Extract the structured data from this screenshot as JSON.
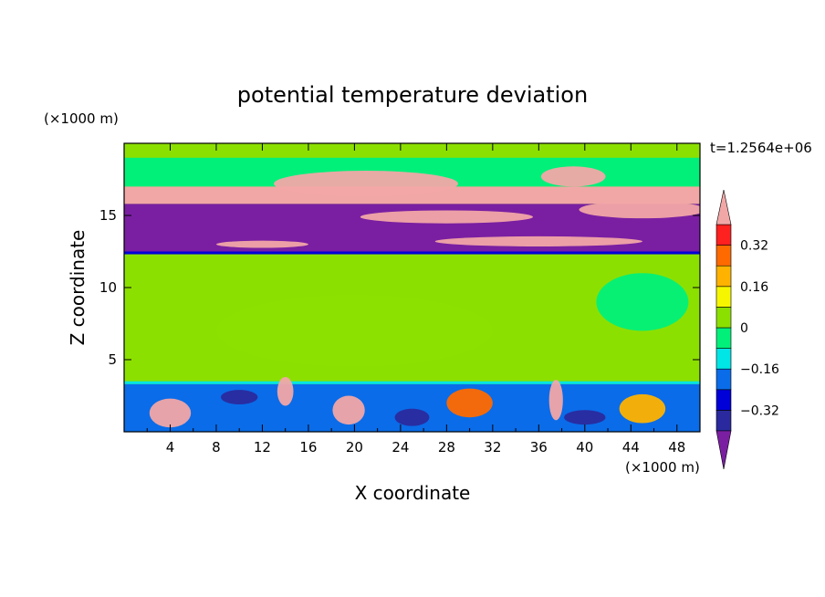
{
  "chart_data": {
    "type": "heatmap",
    "title": "potential temperature deviation",
    "xlabel": "X coordinate",
    "ylabel": "Z coordinate",
    "x_unit": "(×1000 m)",
    "y_unit": "(×1000 m)",
    "time_label": "t=1.2564e+06",
    "xlim": [
      0,
      50
    ],
    "ylim": [
      0,
      20
    ],
    "x_ticks": [
      4,
      8,
      12,
      16,
      20,
      24,
      28,
      32,
      36,
      40,
      44,
      48
    ],
    "y_ticks": [
      5,
      10,
      15
    ],
    "x_tick_labels": [
      "4",
      "8",
      "12",
      "16",
      "20",
      "24",
      "28",
      "32",
      "36",
      "40",
      "44",
      "48"
    ],
    "y_tick_labels": [
      "5",
      "10",
      "15"
    ],
    "colorbar": {
      "levels": [
        -0.4,
        -0.32,
        -0.24,
        -0.16,
        -0.08,
        0,
        0.08,
        0.16,
        0.24,
        0.32,
        0.4
      ],
      "tick_values": [
        0.32,
        0.16,
        0,
        -0.16,
        -0.32
      ],
      "tick_labels": [
        "0.32",
        "0.16",
        "0",
        "−0.16",
        "−0.32"
      ],
      "colors_low_to_high": [
        "#7a1fa2",
        "#2a2a9e",
        "#0000d8",
        "#0a6ce8",
        "#00e5e5",
        "#00f07a",
        "#8ce000",
        "#f6f600",
        "#ffb300",
        "#ff6a00",
        "#ff2020",
        "#f2a7a7"
      ]
    },
    "bands": [
      {
        "z": [
          19.0,
          19.6
        ],
        "value": 0.0
      },
      {
        "z": [
          17.0,
          19.0
        ],
        "value": -0.05
      },
      {
        "z": [
          15.8,
          17.0
        ],
        "value": 0.45
      },
      {
        "z": [
          12.5,
          15.8
        ],
        "value": -0.42
      },
      {
        "z": [
          12.3,
          12.5
        ],
        "value": -0.3
      },
      {
        "z": [
          3.5,
          12.3
        ],
        "value": 0.02
      },
      {
        "z": [
          3.3,
          3.5
        ],
        "value": -0.12
      },
      {
        "z": [
          0,
          3.3
        ],
        "value": -0.2
      }
    ],
    "features": [
      {
        "x": 21,
        "z": 17.2,
        "rx": 8,
        "rz": 0.9,
        "value": 0.45
      },
      {
        "x": 39,
        "z": 17.7,
        "rx": 2.8,
        "rz": 0.7,
        "value": 0.45
      },
      {
        "x": 45,
        "z": 15.4,
        "rx": 5.5,
        "rz": 0.6,
        "value": 0.45
      },
      {
        "x": 28,
        "z": 14.9,
        "rx": 7.5,
        "rz": 0.45,
        "value": 0.45
      },
      {
        "x": 36,
        "z": 13.2,
        "rx": 9,
        "rz": 0.35,
        "value": 0.45
      },
      {
        "x": 12,
        "z": 13.0,
        "rx": 4,
        "rz": 0.25,
        "value": 0.45
      },
      {
        "x": 4,
        "z": 1.3,
        "rx": 1.8,
        "rz": 1.0,
        "value": 0.4
      },
      {
        "x": 19.5,
        "z": 1.5,
        "rx": 1.4,
        "rz": 1.0,
        "value": 0.4
      },
      {
        "x": 14,
        "z": 2.8,
        "rx": 0.7,
        "rz": 1.0,
        "value": 0.45
      },
      {
        "x": 37.5,
        "z": 2.2,
        "rx": 0.6,
        "rz": 1.4,
        "value": 0.45
      },
      {
        "x": 30,
        "z": 2.0,
        "rx": 2.0,
        "rz": 1.0,
        "value": 0.25
      },
      {
        "x": 45,
        "z": 1.6,
        "rx": 2.0,
        "rz": 1.0,
        "value": 0.2
      },
      {
        "x": 25,
        "z": 1.0,
        "rx": 1.5,
        "rz": 0.6,
        "value": -0.4
      },
      {
        "x": 10,
        "z": 2.4,
        "rx": 1.6,
        "rz": 0.5,
        "value": -0.35
      },
      {
        "x": 40,
        "z": 1.0,
        "rx": 1.8,
        "rz": 0.5,
        "value": -0.35
      },
      {
        "x": 20,
        "z": 7.0,
        "rx": 12,
        "rz": 2.5,
        "value": 0.06
      },
      {
        "x": 45,
        "z": 9.0,
        "rx": 4,
        "rz": 2,
        "value": -0.02
      }
    ]
  }
}
